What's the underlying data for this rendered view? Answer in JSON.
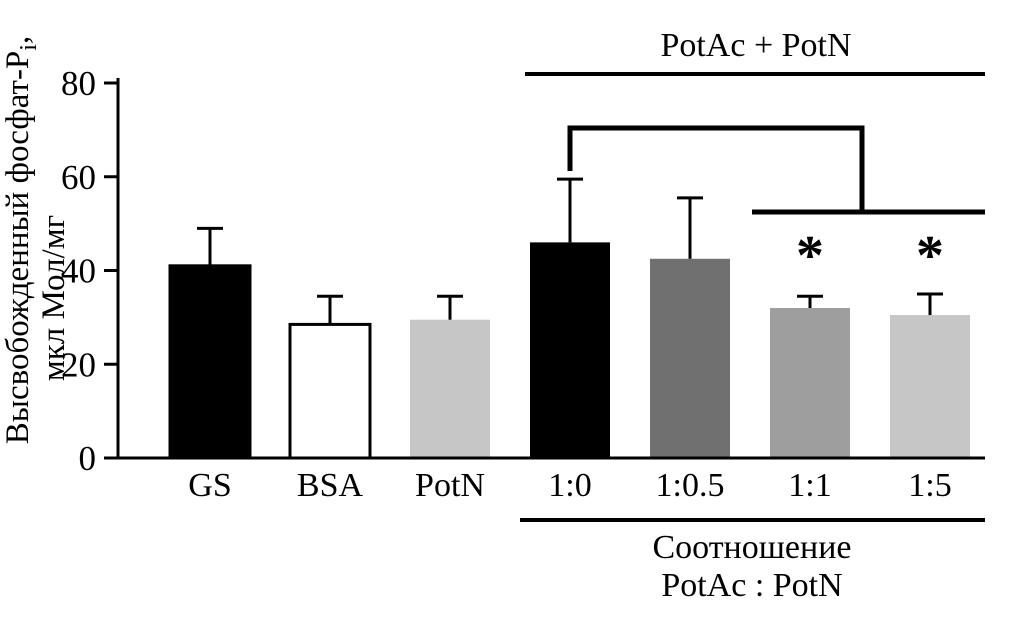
{
  "chart_data": {
    "type": "bar",
    "title": "",
    "categories": [
      "GS",
      "BSA",
      "PotN",
      "1:0",
      "1:0.5",
      "1:1",
      "1:5"
    ],
    "values": [
      41,
      28.5,
      29.5,
      46,
      42.5,
      32,
      30.5
    ],
    "errors_plus": [
      8,
      6,
      5,
      13.5,
      13,
      2.5,
      4.5
    ],
    "bar_colors": [
      "#000000",
      "#ffffff",
      "#c6c6c6",
      "#000000",
      "#707070",
      "#9e9e9e",
      "#c6c6c6"
    ],
    "bar_outline": [
      "#000000",
      "#000000",
      "none",
      "none",
      "none",
      "none",
      "none"
    ],
    "significant": [
      false,
      false,
      false,
      false,
      false,
      true,
      true
    ],
    "ylim": [
      0,
      80
    ],
    "yticks": [
      0,
      20,
      40,
      60,
      80
    ],
    "ylabel_main": "Высвобожденный фосфат-P",
    "ylabel_sub": "i",
    "ylabel_tail": ",",
    "ylabel_line2": "мкл Мол/мг",
    "top_group_label": "PotAc + PotN",
    "top_group_span": [
      "1:0",
      "1:5"
    ],
    "bottom_group_label_line1": "Соотношение",
    "bottom_group_label_line2": "PotAc : PotN",
    "bottom_group_span": [
      "1:0",
      "1:5"
    ],
    "comparison_bracket": {
      "from": "1:0",
      "to": [
        "1:1",
        "1:5"
      ]
    },
    "asterisk": "*",
    "asterisk_color": "#e02424",
    "axis_color": "#000000",
    "grid": false,
    "legend": false
  }
}
